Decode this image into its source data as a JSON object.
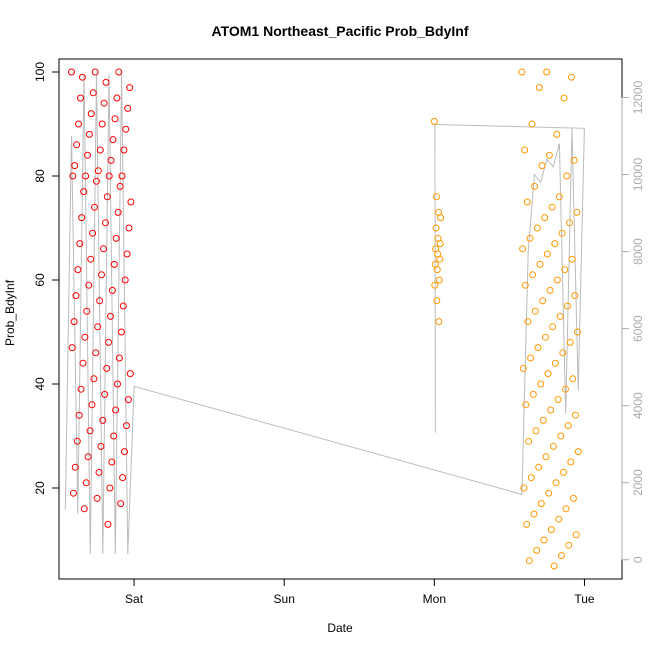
{
  "chart_data": {
    "type": "scatter",
    "title": "ATOM1 Northeast_Pacific Prob_BdyInf",
    "xlabel": "Date",
    "ylabel": "Prob_BdyInf",
    "x_ticks": [
      "Sat",
      "Sun",
      "Mon",
      "Tue"
    ],
    "x_range": [
      "Fri 12:00",
      "Tue 06:00"
    ],
    "y_ticks": [
      20,
      40,
      60,
      80
    ],
    "y_ticks_extra": [
      100
    ],
    "ylim": [
      2.5,
      102.5
    ],
    "y2_ticks": [
      0,
      2000,
      4000,
      6000,
      8000,
      10000,
      12000
    ],
    "y2lim": [
      -500,
      13000
    ],
    "grid": false,
    "legend": "none",
    "colors": {
      "group1": "#ff0000",
      "group2": "#ff9900",
      "line": "#bbbbbb",
      "secondary_axis": "#aaaaaa"
    },
    "series": [
      {
        "group": "group1",
        "x_range_days": [
          "Fri 14:00",
          "Fri 23:30"
        ],
        "values": [
          100,
          100,
          100,
          99,
          98,
          97,
          96,
          95,
          95,
          94,
          93,
          92,
          91,
          90,
          90,
          89,
          88,
          87,
          86,
          85,
          85,
          84,
          83,
          82,
          81,
          80,
          80,
          80,
          80,
          79,
          78,
          77,
          76,
          75,
          74,
          73,
          72,
          71,
          70,
          69,
          68,
          67,
          66,
          65,
          64,
          63,
          62,
          61,
          60,
          59,
          58,
          57,
          56,
          55,
          54,
          53,
          52,
          51,
          50,
          49,
          48,
          47,
          46,
          45,
          44,
          43,
          42,
          41,
          40,
          39,
          38,
          37,
          36,
          35,
          34,
          33,
          32,
          31,
          30,
          29,
          28,
          27,
          26,
          25,
          24,
          23,
          22,
          21,
          20,
          19,
          18,
          17,
          16,
          13
        ]
      },
      {
        "group": "group2",
        "x_range_days": [
          "Mon 00:00",
          "Mon 01:00"
        ],
        "values": [
          90.5,
          76,
          73,
          72,
          70,
          68,
          67,
          66,
          65,
          64,
          63,
          62,
          60,
          59,
          56,
          52
        ]
      },
      {
        "group": "group2",
        "x_range_days": [
          "Mon 14:00",
          "Mon 23:00"
        ],
        "values": [
          100,
          100,
          99,
          97,
          95,
          90,
          88,
          85,
          84,
          83,
          82,
          80,
          78,
          76,
          75,
          74,
          73,
          72,
          71,
          70,
          69,
          68,
          67,
          66,
          65,
          64,
          63,
          62,
          61,
          60,
          59,
          58,
          57,
          56,
          55,
          54,
          53,
          52,
          51,
          50,
          49,
          48,
          47,
          46,
          45,
          44,
          43,
          42,
          41,
          40,
          39,
          38,
          37,
          36,
          35,
          34,
          33,
          32,
          31,
          30,
          29,
          28,
          27,
          26,
          25,
          24,
          23,
          22,
          21,
          20,
          19,
          18,
          17,
          16,
          15,
          14,
          13,
          12,
          11,
          10,
          9,
          8,
          7,
          6,
          5
        ]
      }
    ],
    "secondary_line": {
      "axis": "right",
      "points": [
        [
          "Fri 13:00",
          1300
        ],
        [
          "Fri 14:00",
          11000
        ],
        [
          "Fri 15:00",
          1200
        ],
        [
          "Fri 16:00",
          12600
        ],
        [
          "Fri 17:00",
          150
        ],
        [
          "Fri 18:00",
          12600
        ],
        [
          "Fri 19:00",
          150
        ],
        [
          "Fri 20:00",
          12600
        ],
        [
          "Fri 21:00",
          150
        ],
        [
          "Fri 22:00",
          12600
        ],
        [
          "Fri 23:00",
          150
        ],
        [
          "Sat 00:00",
          4500
        ],
        [
          "Mon 14:00",
          1700
        ],
        [
          "Mon 15:00",
          8000
        ],
        [
          "Mon 16:00",
          10000
        ],
        [
          "Mon 17:00",
          9800
        ],
        [
          "Mon 18:00",
          10400
        ],
        [
          "Mon 19:00",
          10200
        ],
        [
          "Mon 20:00",
          10800
        ],
        [
          "Mon 21:00",
          3800
        ],
        [
          "Mon 22:00",
          11200
        ],
        [
          "Mon 23:00",
          4400
        ],
        [
          "Mon 23:59",
          11200
        ],
        [
          "Mon 00:05",
          11300
        ],
        [
          "Mon 00:10",
          3300
        ]
      ]
    }
  }
}
